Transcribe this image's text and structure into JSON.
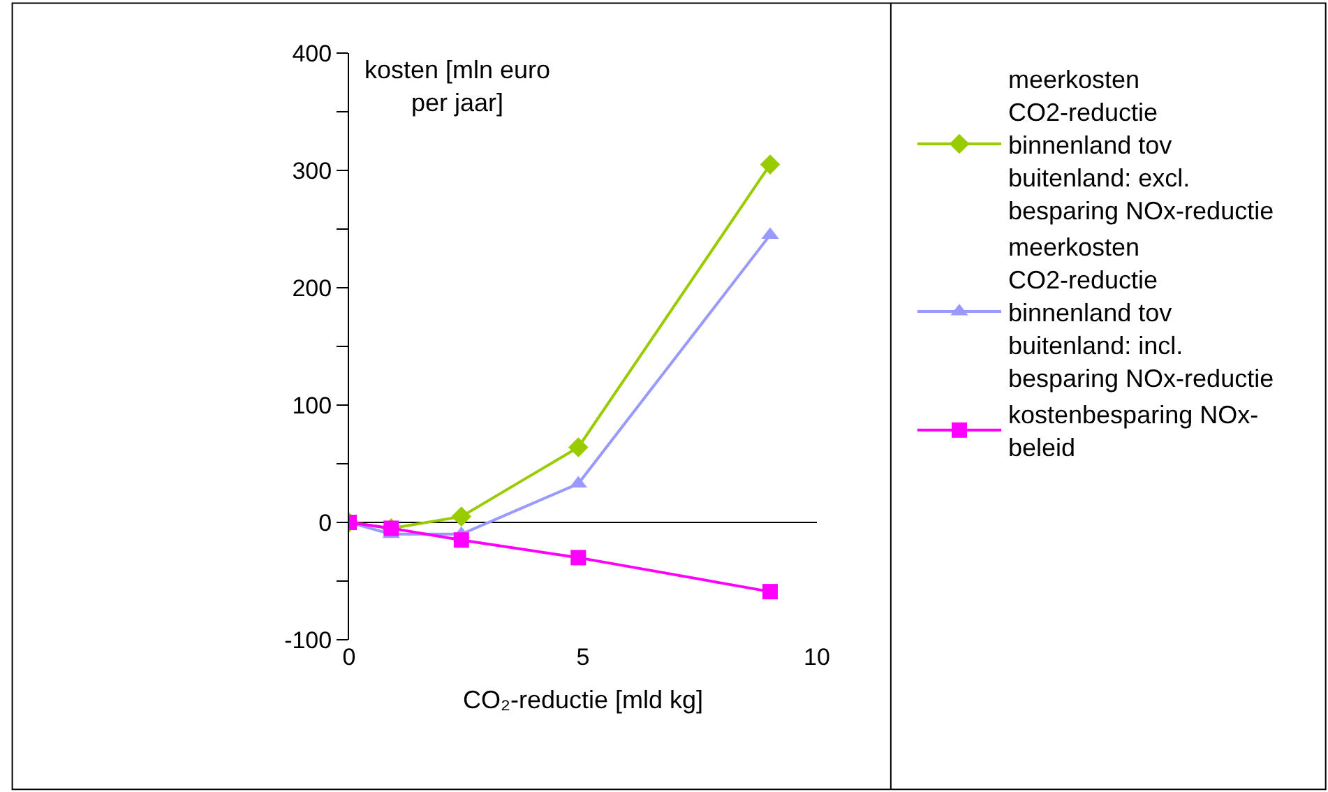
{
  "chart_data": {
    "type": "line",
    "xlabel": "CO₂-reductie [mld kg]",
    "ylabel": "kosten [mln euro per jaar]",
    "x": [
      0,
      0.9,
      2.4,
      4.9,
      9.0
    ],
    "series": [
      {
        "name": "meerkosten CO2-reductie binnenland tov buitenland: excl. besparing NOx-reductie",
        "color": "#99cc00",
        "marker": "diamond",
        "values": [
          0,
          -5,
          5,
          64,
          305
        ]
      },
      {
        "name": "meerkosten CO2-reductie binnenland tov buitenland: incl. besparing NOx-reductie",
        "color": "#9999ff",
        "marker": "triangle",
        "values": [
          0,
          -10,
          -10,
          33,
          245
        ]
      },
      {
        "name": "kostenbesparing NOx-beleid",
        "color": "#ff00ff",
        "marker": "square",
        "values": [
          0,
          -5,
          -15,
          -30,
          -59
        ]
      }
    ],
    "xlim": [
      0,
      10
    ],
    "xticks": [
      0,
      5,
      10
    ],
    "ylim": [
      -100,
      400
    ],
    "yticks": [
      -100,
      {
        "value": -50,
        "label": null
      },
      0,
      {
        "value": 50,
        "label": null
      },
      100,
      {
        "value": 150,
        "label": null
      },
      200,
      {
        "value": 250,
        "label": null
      },
      300,
      {
        "value": 350,
        "label": null
      },
      400
    ],
    "legend": "right",
    "line_style": "solid"
  }
}
